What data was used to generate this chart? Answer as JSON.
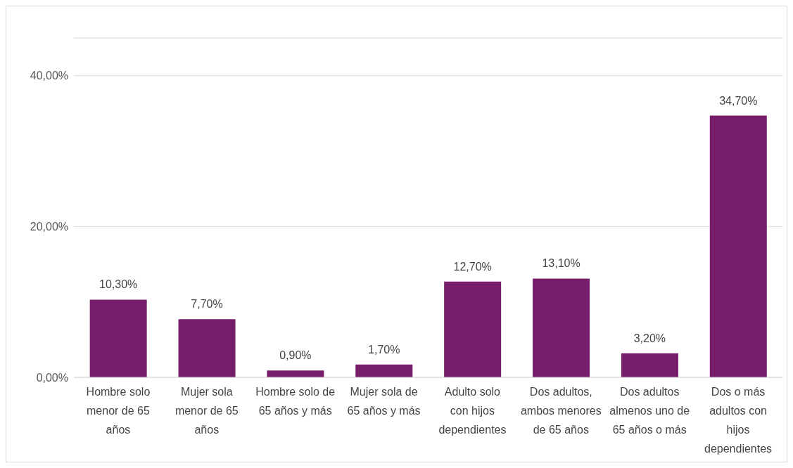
{
  "chart_data": {
    "type": "bar",
    "categories": [
      "Hombre solo menor de 65 años",
      "Mujer sola menor de 65 años",
      "Hombre solo de 65 años y más",
      "Mujer sola de 65 años y más",
      "Adulto solo con hijos dependientes",
      "Dos adultos, ambos menores de 65 años",
      "Dos adultos almenos uno de 65 años o más",
      "Dos o más adultos con hijos dependientes"
    ],
    "values": [
      10.3,
      7.7,
      0.9,
      1.7,
      12.7,
      13.1,
      3.2,
      34.7
    ],
    "value_labels": [
      "10,30%",
      "7,70%",
      "0,90%",
      "1,70%",
      "12,70%",
      "13,10%",
      "3,20%",
      "34,70%"
    ],
    "color": "#771d6b",
    "ylim": [
      0,
      45
    ],
    "yticks": [
      {
        "value": 0,
        "label": "0,00%"
      },
      {
        "value": 20,
        "label": "20,00%"
      },
      {
        "value": 40,
        "label": "40,00%"
      }
    ],
    "grid": "y"
  }
}
